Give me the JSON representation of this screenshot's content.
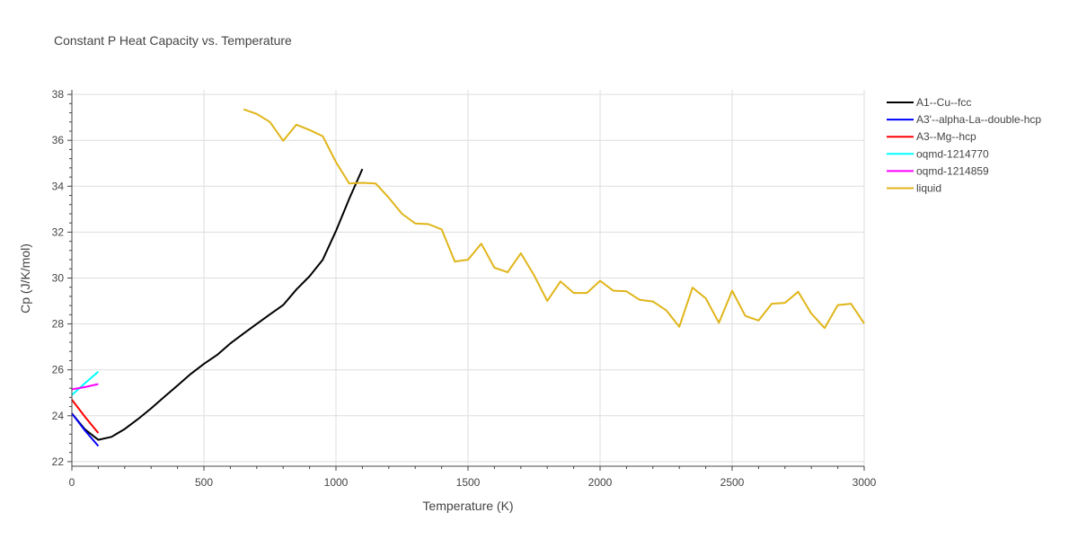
{
  "chart_data": {
    "type": "line",
    "title": "Constant P Heat Capacity vs. Temperature",
    "xlabel": "Temperature (K)",
    "ylabel": "Cp (J/K/mol)",
    "xlim": [
      0,
      3000
    ],
    "ylim": [
      21.8,
      38.2
    ],
    "xticks": [
      0,
      500,
      1000,
      1500,
      2000,
      2500,
      3000
    ],
    "xtick_labels": [
      "0",
      "500",
      "1000",
      "1500",
      "2000",
      "2500",
      "3000"
    ],
    "yticks": [
      22,
      24,
      26,
      28,
      30,
      32,
      34,
      36,
      38
    ],
    "ytick_labels": [
      "22",
      "24",
      "26",
      "28",
      "30",
      "32",
      "34",
      "36",
      "38"
    ],
    "grid": true,
    "legend_position": "top-right",
    "series": [
      {
        "name": "A1--Cu--fcc",
        "color": "#000000",
        "x": [
          0,
          50,
          100,
          150,
          200,
          250,
          300,
          350,
          400,
          450,
          500,
          550,
          600,
          650,
          700,
          750,
          800,
          850,
          900,
          950,
          1000,
          1050,
          1100
        ],
        "y": [
          24.1,
          23.4,
          22.95,
          23.08,
          23.42,
          23.85,
          24.32,
          24.82,
          25.32,
          25.82,
          26.26,
          26.65,
          27.15,
          27.58,
          28.0,
          28.42,
          28.82,
          29.5,
          30.08,
          30.8,
          32.05,
          33.45,
          34.75
        ]
      },
      {
        "name": "A3'--alpha-La--double-hcp",
        "color": "#0000ff",
        "x": [
          0,
          50,
          100
        ],
        "y": [
          24.1,
          23.35,
          22.68
        ]
      },
      {
        "name": "A3--Mg--hcp",
        "color": "#ff0000",
        "x": [
          0,
          50,
          100
        ],
        "y": [
          24.7,
          23.95,
          23.25
        ]
      },
      {
        "name": "oqmd-1214770",
        "color": "#00ffff",
        "x": [
          0,
          50,
          100
        ],
        "y": [
          24.9,
          25.42,
          25.92
        ]
      },
      {
        "name": "oqmd-1214859",
        "color": "#ff00ff",
        "x": [
          0,
          50,
          100
        ],
        "y": [
          25.15,
          25.25,
          25.38
        ]
      },
      {
        "name": "liquid",
        "color": "#e0b51a",
        "x": [
          650,
          700,
          750,
          800,
          850,
          900,
          950,
          1000,
          1050,
          1100,
          1150,
          1200,
          1250,
          1300,
          1350,
          1400,
          1450,
          1500,
          1550,
          1600,
          1650,
          1700,
          1750,
          1800,
          1850,
          1900,
          1950,
          2000,
          2050,
          2100,
          2150,
          2200,
          2250,
          2300,
          2350,
          2400,
          2450,
          2500,
          2550,
          2600,
          2650,
          2700,
          2750,
          2800,
          2850,
          2900,
          2950,
          3000
        ],
        "y": [
          37.35,
          37.15,
          36.8,
          35.98,
          36.68,
          36.45,
          36.18,
          35.05,
          34.12,
          34.15,
          34.12,
          33.5,
          32.8,
          32.38,
          32.35,
          32.12,
          30.72,
          30.8,
          31.5,
          30.45,
          30.25,
          31.08,
          30.12,
          29.0,
          29.85,
          29.35,
          29.35,
          29.88,
          29.45,
          29.42,
          29.05,
          28.98,
          28.6,
          27.88,
          29.58,
          29.12,
          28.05,
          29.45,
          28.35,
          28.15,
          28.88,
          28.92,
          29.4,
          28.45,
          27.82,
          28.82,
          28.88,
          28.02
        ]
      }
    ]
  }
}
